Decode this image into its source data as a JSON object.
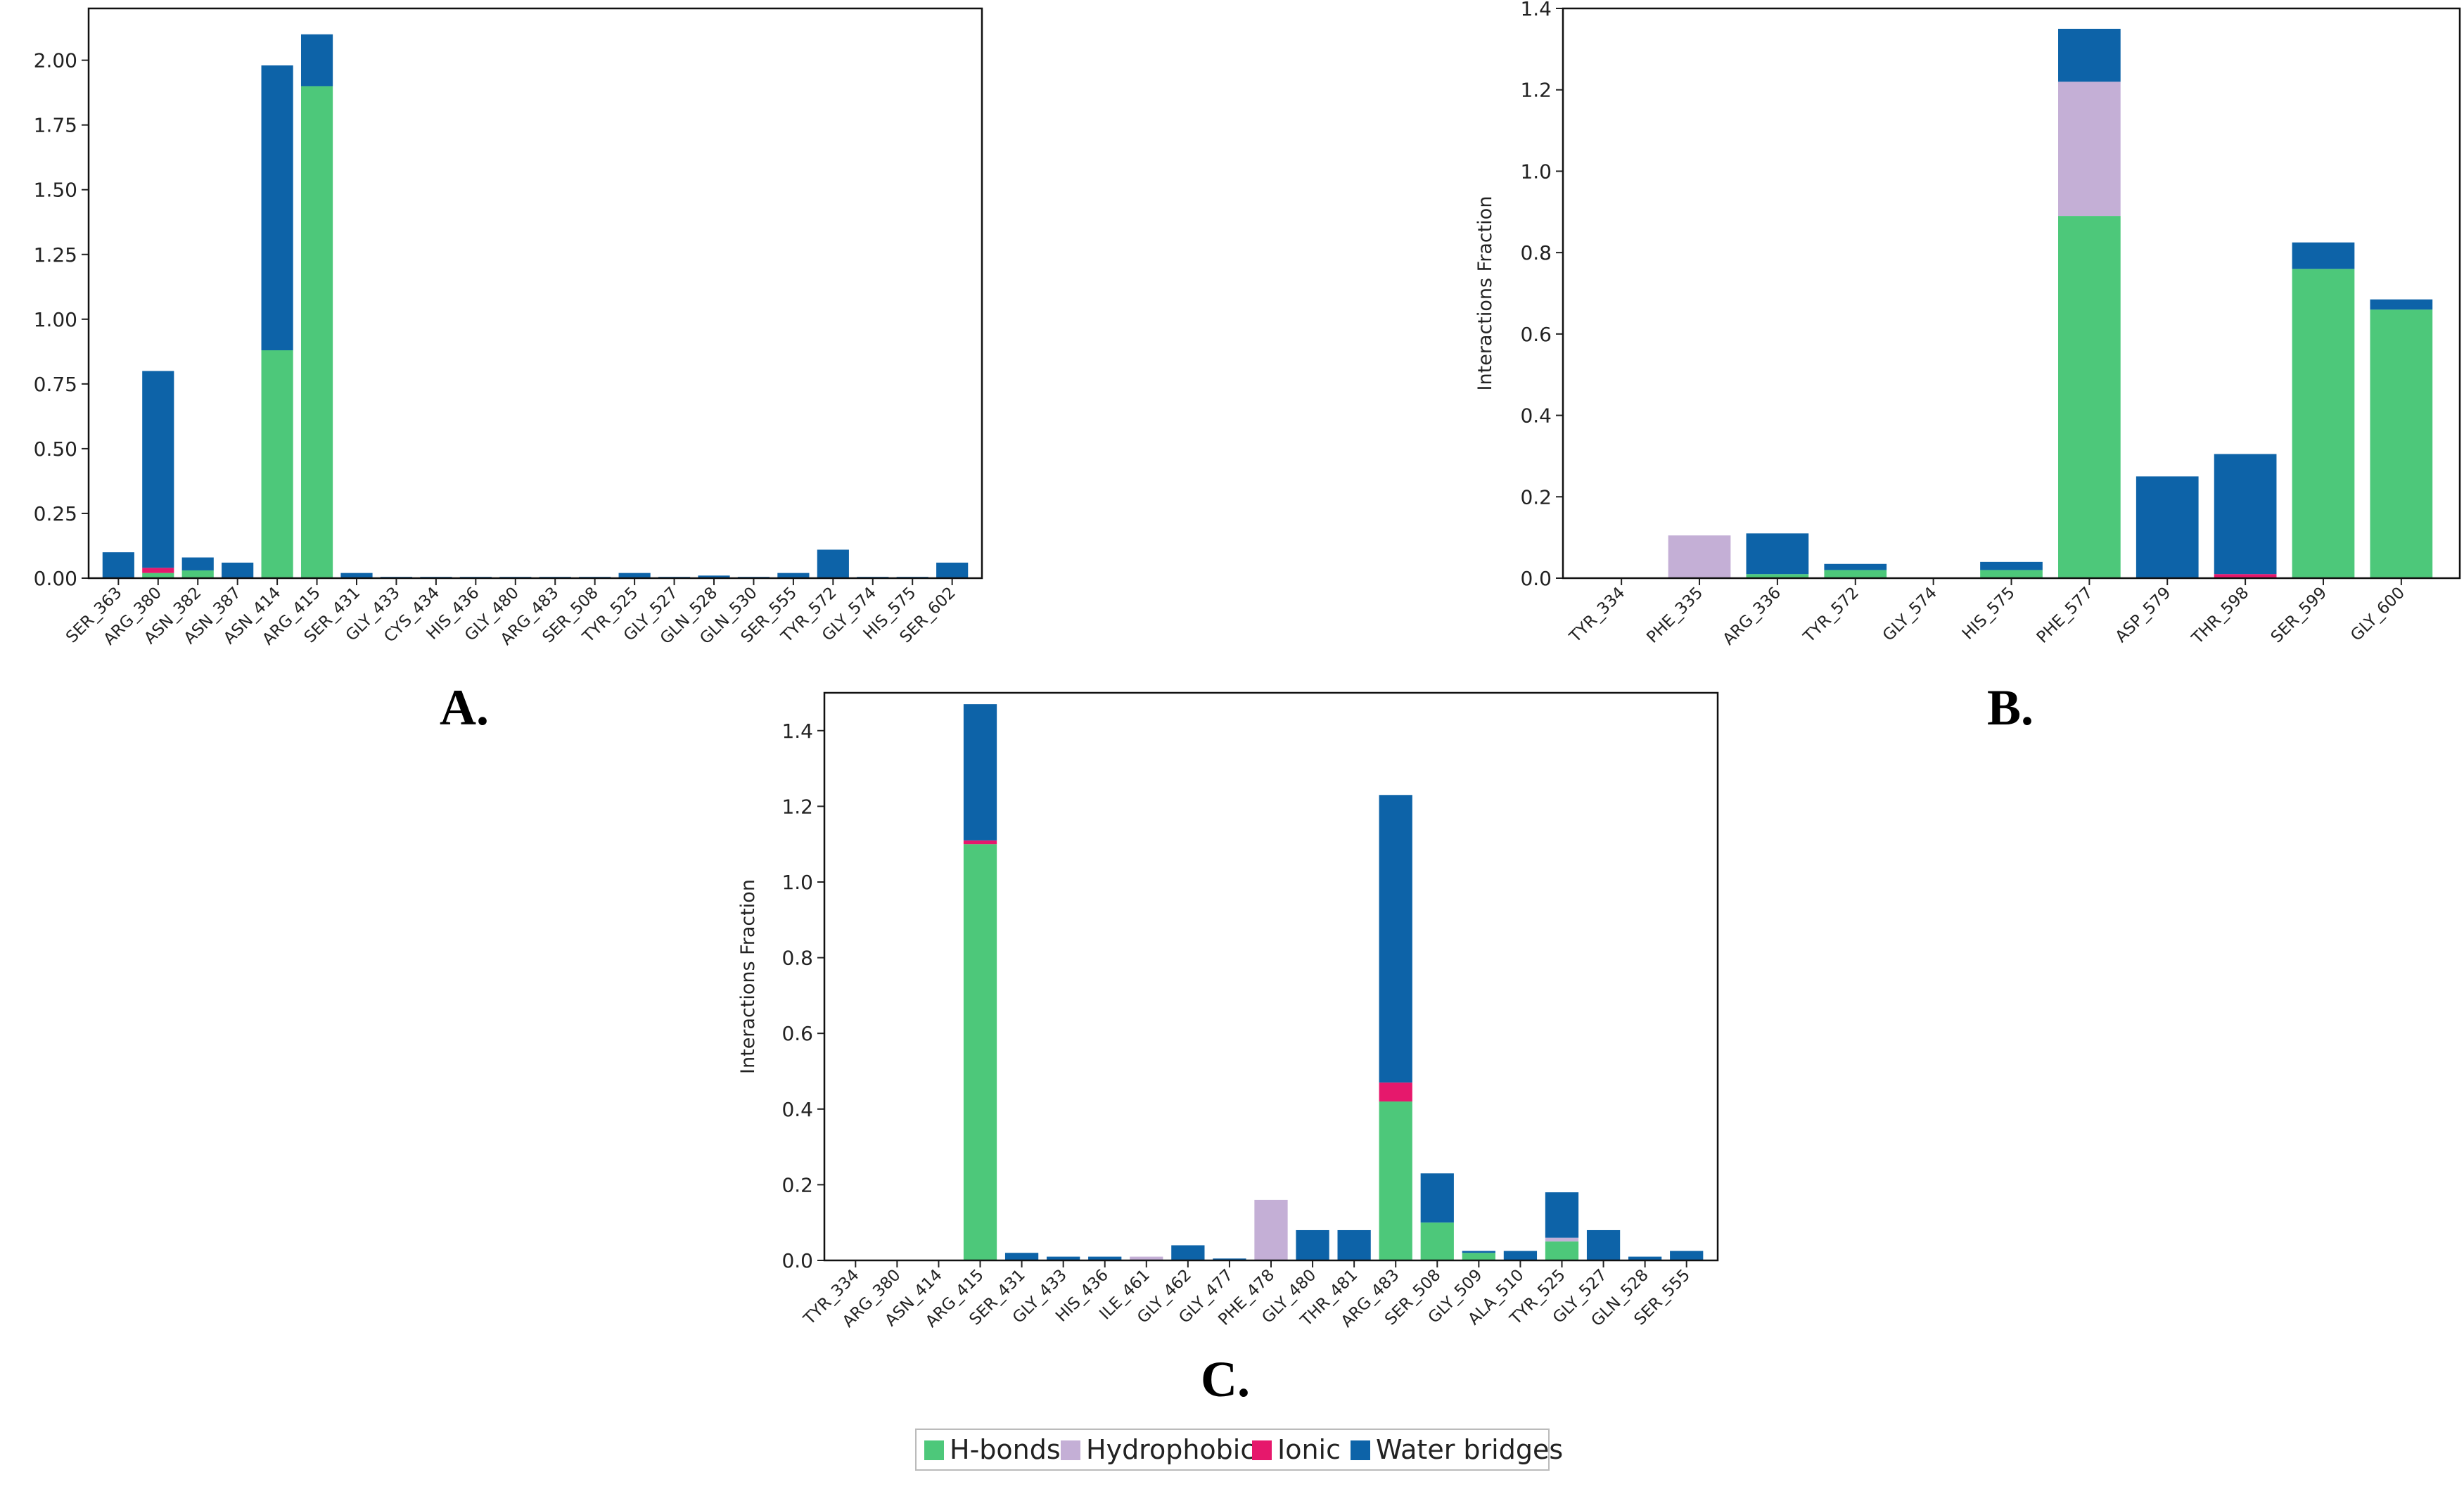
{
  "legend": {
    "items": [
      {
        "label": "H-bonds",
        "color": "#4dc87a"
      },
      {
        "label": "Hydrophobic",
        "color": "#c4afd6"
      },
      {
        "label": "Ionic",
        "color": "#e6186c"
      },
      {
        "label": "Water bridges",
        "color": "#0d63a8"
      }
    ]
  },
  "chart_data": [
    {
      "type": "bar",
      "stacked": true,
      "panel_label": "A.",
      "ylabel": "",
      "ylim": [
        0,
        2.2
      ],
      "yticks": [
        0.0,
        0.25,
        0.5,
        0.75,
        1.0,
        1.25,
        1.5,
        1.75,
        2.0
      ],
      "ytick_labels": [
        "0.00",
        "0.25",
        "0.50",
        "0.75",
        "1.00",
        "1.25",
        "1.50",
        "1.75",
        "2.00"
      ],
      "categories": [
        "SER_363",
        "ARG_380",
        "ASN_382",
        "ASN_387",
        "ASN_414",
        "ARG_415",
        "SER_431",
        "GLY_433",
        "CYS_434",
        "HIS_436",
        "GLY_480",
        "ARG_483",
        "SER_508",
        "TYR_525",
        "GLY_527",
        "GLN_528",
        "GLN_530",
        "SER_555",
        "TYR_572",
        "GLY_574",
        "HIS_575",
        "SER_602"
      ],
      "series": [
        {
          "name": "H-bonds",
          "color": "#4dc87a",
          "values": [
            0,
            0.02,
            0.03,
            0,
            0.88,
            1.9,
            0,
            0,
            0,
            0,
            0,
            0,
            0,
            0,
            0,
            0,
            0,
            0,
            0,
            0,
            0,
            0
          ]
        },
        {
          "name": "Hydrophobic",
          "color": "#c4afd6",
          "values": [
            0,
            0,
            0,
            0,
            0,
            0,
            0,
            0,
            0,
            0,
            0,
            0,
            0,
            0,
            0,
            0,
            0,
            0,
            0,
            0,
            0,
            0
          ]
        },
        {
          "name": "Ionic",
          "color": "#e6186c",
          "values": [
            0,
            0.02,
            0,
            0,
            0,
            0,
            0,
            0,
            0,
            0,
            0,
            0,
            0,
            0,
            0,
            0,
            0,
            0,
            0,
            0,
            0,
            0
          ]
        },
        {
          "name": "Water bridges",
          "color": "#0d63a8",
          "values": [
            0.1,
            0.76,
            0.05,
            0.06,
            1.1,
            0.2,
            0.02,
            0.005,
            0.005,
            0.005,
            0.005,
            0.005,
            0.005,
            0.02,
            0.005,
            0.01,
            0.005,
            0.02,
            0.11,
            0.005,
            0.005,
            0.06
          ]
        }
      ]
    },
    {
      "type": "bar",
      "stacked": true,
      "panel_label": "B.",
      "ylabel": "Interactions Fraction",
      "ylim": [
        0,
        1.4
      ],
      "yticks": [
        0.0,
        0.2,
        0.4,
        0.6,
        0.8,
        1.0,
        1.2,
        1.4
      ],
      "ytick_labels": [
        "0.0",
        "0.2",
        "0.4",
        "0.6",
        "0.8",
        "1.0",
        "1.2",
        "1.4"
      ],
      "categories": [
        "TYR_334",
        "PHE_335",
        "ARG_336",
        "TYR_572",
        "GLY_574",
        "HIS_575",
        "PHE_577",
        "ASP_579",
        "THR_598",
        "SER_599",
        "GLY_600"
      ],
      "series": [
        {
          "name": "H-bonds",
          "color": "#4dc87a",
          "values": [
            0,
            0,
            0.01,
            0.02,
            0,
            0.02,
            0.89,
            0,
            0,
            0.76,
            0.66
          ]
        },
        {
          "name": "Hydrophobic",
          "color": "#c4afd6",
          "values": [
            0,
            0.105,
            0,
            0,
            0,
            0,
            0.33,
            0,
            0,
            0,
            0
          ]
        },
        {
          "name": "Ionic",
          "color": "#e6186c",
          "values": [
            0,
            0,
            0,
            0,
            0,
            0,
            0,
            0,
            0.01,
            0,
            0
          ]
        },
        {
          "name": "Water bridges",
          "color": "#0d63a8",
          "values": [
            0,
            0,
            0.1,
            0.015,
            0,
            0.02,
            0.13,
            0.25,
            0.295,
            0.065,
            0.025
          ]
        }
      ]
    },
    {
      "type": "bar",
      "stacked": true,
      "panel_label": "C.",
      "ylabel": "Interactions Fraction",
      "ylim": [
        0,
        1.5
      ],
      "yticks": [
        0.0,
        0.2,
        0.4,
        0.6,
        0.8,
        1.0,
        1.2,
        1.4
      ],
      "ytick_labels": [
        "0.0",
        "0.2",
        "0.4",
        "0.6",
        "0.8",
        "1.0",
        "1.2",
        "1.4"
      ],
      "categories": [
        "TYR_334",
        "ARG_380",
        "ASN_414",
        "ARG_415",
        "SER_431",
        "GLY_433",
        "HIS_436",
        "ILE_461",
        "GLY_462",
        "GLY_477",
        "PHE_478",
        "GLY_480",
        "THR_481",
        "ARG_483",
        "SER_508",
        "GLY_509",
        "ALA_510",
        "TYR_525",
        "GLY_527",
        "GLN_528",
        "SER_555"
      ],
      "series": [
        {
          "name": "H-bonds",
          "color": "#4dc87a",
          "values": [
            0,
            0,
            0,
            1.1,
            0,
            0,
            0,
            0,
            0,
            0,
            0,
            0,
            0,
            0.42,
            0.1,
            0.02,
            0,
            0.05,
            0,
            0,
            0
          ]
        },
        {
          "name": "Hydrophobic",
          "color": "#c4afd6",
          "values": [
            0,
            0,
            0,
            0,
            0,
            0,
            0,
            0.01,
            0,
            0,
            0.16,
            0,
            0,
            0,
            0,
            0,
            0,
            0.01,
            0,
            0,
            0
          ]
        },
        {
          "name": "Ionic",
          "color": "#e6186c",
          "values": [
            0,
            0,
            0,
            0.01,
            0,
            0,
            0,
            0,
            0,
            0,
            0,
            0,
            0,
            0.05,
            0,
            0,
            0,
            0,
            0,
            0,
            0
          ]
        },
        {
          "name": "Water bridges",
          "color": "#0d63a8",
          "values": [
            0,
            0,
            0,
            0.36,
            0.02,
            0.01,
            0.01,
            0,
            0.04,
            0.005,
            0,
            0.08,
            0.08,
            0.76,
            0.13,
            0.005,
            0.025,
            0.12,
            0.08,
            0.01,
            0.025
          ]
        }
      ]
    }
  ]
}
